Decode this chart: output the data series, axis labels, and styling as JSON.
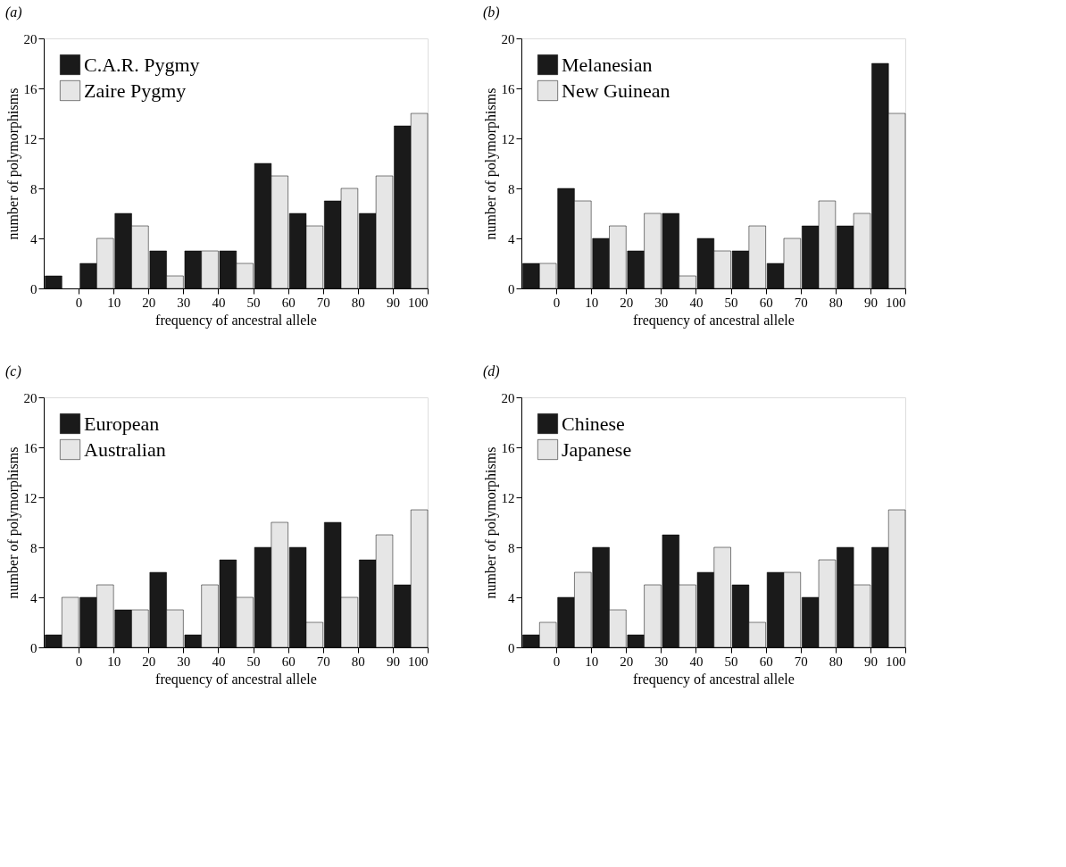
{
  "chart_data": [
    {
      "type": "histogram",
      "title": "(a)",
      "xlabel": "frequency of ancestral allele",
      "ylabel": "number of polymorphisms",
      "bins": [
        -10,
        0,
        10,
        20,
        30,
        40,
        50,
        60,
        70,
        80,
        90,
        100
      ],
      "xlim": [
        -10,
        100
      ],
      "xticks": [
        0,
        10,
        20,
        30,
        40,
        50,
        60,
        70,
        80,
        90,
        100
      ],
      "ylim": [
        0,
        20
      ],
      "yticks": [
        0,
        4,
        8,
        12,
        16,
        20
      ],
      "legend": "top left",
      "series": [
        {
          "name": "C.A.R. Pygmy",
          "color": "#1a1a1a",
          "values": [
            1,
            2,
            6,
            3,
            3,
            3,
            10,
            6,
            7,
            6,
            13
          ]
        },
        {
          "name": "Zaire Pygmy",
          "color": "#e6e6e6",
          "values": [
            0,
            4,
            5,
            1,
            3,
            2,
            9,
            5,
            8,
            9,
            14
          ]
        }
      ]
    },
    {
      "type": "histogram",
      "title": "(b)",
      "xlabel": "frequency of ancestral allele",
      "ylabel": "number of polymorphisms",
      "bins": [
        -10,
        0,
        10,
        20,
        30,
        40,
        50,
        60,
        70,
        80,
        90,
        100
      ],
      "xlim": [
        -10,
        100
      ],
      "xticks": [
        0,
        10,
        20,
        30,
        40,
        50,
        60,
        70,
        80,
        90,
        100
      ],
      "ylim": [
        0,
        20
      ],
      "yticks": [
        0,
        4,
        8,
        12,
        16,
        20
      ],
      "legend": "top left",
      "series": [
        {
          "name": "Melanesian",
          "color": "#1a1a1a",
          "values": [
            2,
            8,
            4,
            3,
            6,
            4,
            3,
            2,
            5,
            5,
            18
          ]
        },
        {
          "name": "New Guinean",
          "color": "#e6e6e6",
          "values": [
            2,
            7,
            5,
            6,
            1,
            3,
            5,
            4,
            7,
            6,
            14
          ]
        }
      ]
    },
    {
      "type": "histogram",
      "title": "(c)",
      "xlabel": "frequency of ancestral allele",
      "ylabel": "number of polymorphisms",
      "bins": [
        -10,
        0,
        10,
        20,
        30,
        40,
        50,
        60,
        70,
        80,
        90,
        100
      ],
      "xlim": [
        -10,
        100
      ],
      "xticks": [
        0,
        10,
        20,
        30,
        40,
        50,
        60,
        70,
        80,
        90,
        100
      ],
      "ylim": [
        0,
        20
      ],
      "yticks": [
        0,
        4,
        8,
        12,
        16,
        20
      ],
      "legend": "top left",
      "series": [
        {
          "name": "European",
          "color": "#1a1a1a",
          "values": [
            1,
            4,
            3,
            6,
            1,
            7,
            8,
            8,
            10,
            7,
            5
          ]
        },
        {
          "name": "Australian",
          "color": "#e6e6e6",
          "values": [
            4,
            5,
            3,
            3,
            5,
            4,
            10,
            2,
            4,
            9,
            11
          ]
        }
      ]
    },
    {
      "type": "histogram",
      "title": "(d)",
      "xlabel": "frequency of ancestral allele",
      "ylabel": "number of polymorphisms",
      "bins": [
        -10,
        0,
        10,
        20,
        30,
        40,
        50,
        60,
        70,
        80,
        90,
        100
      ],
      "xlim": [
        -10,
        100
      ],
      "xticks": [
        0,
        10,
        20,
        30,
        40,
        50,
        60,
        70,
        80,
        90,
        100
      ],
      "ylim": [
        0,
        20
      ],
      "yticks": [
        0,
        4,
        8,
        12,
        16,
        20
      ],
      "legend": "top left",
      "series": [
        {
          "name": "Chinese",
          "color": "#1a1a1a",
          "values": [
            1,
            4,
            8,
            1,
            9,
            6,
            5,
            6,
            4,
            8,
            8
          ]
        },
        {
          "name": "Japanese",
          "color": "#e6e6e6",
          "values": [
            2,
            6,
            3,
            5,
            5,
            8,
            2,
            6,
            7,
            5,
            11
          ]
        }
      ]
    }
  ]
}
